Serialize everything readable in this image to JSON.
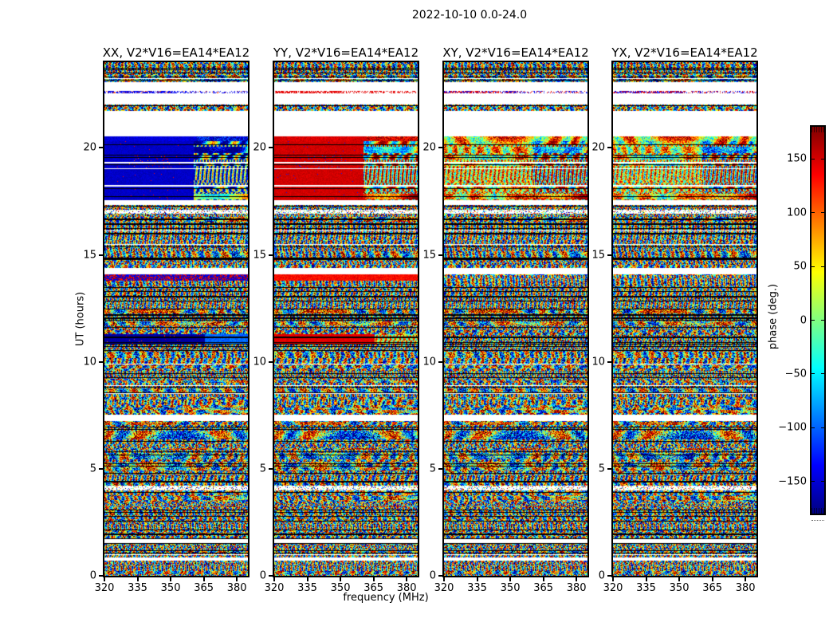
{
  "figure": {
    "suptitle": "2022-10-10 0.0-24.0",
    "xlabel": "frequency (MHz)",
    "ylabel": "UT (hours)",
    "colorbar_label": "phase (deg.)"
  },
  "chart_data": {
    "type": "heatmap",
    "title": "2022-10-10 0.0-24.0",
    "description": "Four waterfall panels of interferometric visibility phase vs frequency and time for baseline V2*V16=EA14*EA12, polarizations XX, YY, XY, YX, colored with a jet colormap.",
    "panels": [
      {
        "id": "XX",
        "title": "XX, V2*V16=EA14*EA12",
        "special_style": "cold-solid",
        "base": -0.86
      },
      {
        "id": "YY",
        "title": "YY, V2*V16=EA14*EA12",
        "special_style": "warm-solid",
        "base": 0.84
      },
      {
        "id": "XY",
        "title": "XY, V2*V16=EA14*EA12",
        "special_style": "warm-noise",
        "base": 0.32
      },
      {
        "id": "YX",
        "title": "YX, V2*V16=EA14*EA12",
        "special_style": "warm-noise",
        "base": 0.24
      }
    ],
    "x_axis": {
      "label": "frequency (MHz)",
      "range": [
        320,
        385
      ],
      "ticks": [
        320,
        335,
        350,
        365,
        380
      ]
    },
    "y_axis": {
      "label": "UT (hours)",
      "range": [
        0,
        24
      ],
      "ticks": [
        0,
        5,
        10,
        15,
        20
      ]
    },
    "colorbar": {
      "label": "phase (deg.)",
      "range": [
        -180,
        180
      ],
      "ticks": [
        150,
        100,
        50,
        0,
        -50,
        -100,
        -150
      ],
      "colormap": "jet",
      "jet_stops": [
        "#000080",
        "#0000ff",
        "#00ffff",
        "#80ff80",
        "#ffff00",
        "#ff0000",
        "#800000"
      ]
    },
    "bands": [
      [
        24.0,
        23.08,
        "noise"
      ],
      [
        23.08,
        22.65,
        "white"
      ],
      [
        22.65,
        22.56,
        "dots"
      ],
      [
        22.56,
        22.02,
        "white"
      ],
      [
        22.02,
        21.72,
        "noise"
      ],
      [
        21.72,
        20.55,
        "white"
      ],
      [
        20.55,
        20.3,
        "accent"
      ],
      [
        20.3,
        17.55,
        "special"
      ],
      [
        17.55,
        17.32,
        "white"
      ],
      [
        17.32,
        17.12,
        "noise"
      ],
      [
        17.12,
        16.92,
        "dots-white"
      ],
      [
        16.92,
        14.38,
        "noise"
      ],
      [
        14.38,
        14.08,
        "white"
      ],
      [
        14.08,
        13.78,
        "accent2"
      ],
      [
        13.78,
        11.28,
        "noise"
      ],
      [
        11.28,
        10.82,
        "special2"
      ],
      [
        10.82,
        7.52,
        "noise"
      ],
      [
        7.52,
        7.28,
        "white"
      ],
      [
        7.28,
        4.22,
        "noise"
      ],
      [
        4.22,
        3.98,
        "dots-white"
      ],
      [
        3.98,
        1.73,
        "noise"
      ],
      [
        1.73,
        1.52,
        "white"
      ],
      [
        1.52,
        0.84,
        "noise"
      ],
      [
        0.84,
        0.72,
        "white"
      ],
      [
        0.72,
        0.0,
        "noise"
      ]
    ],
    "special_white_rows": [
      [
        19.34,
        19.28
      ],
      [
        19.06,
        19.0
      ],
      [
        18.27,
        18.2
      ]
    ],
    "noise_black_row_prob": 0.12
  }
}
